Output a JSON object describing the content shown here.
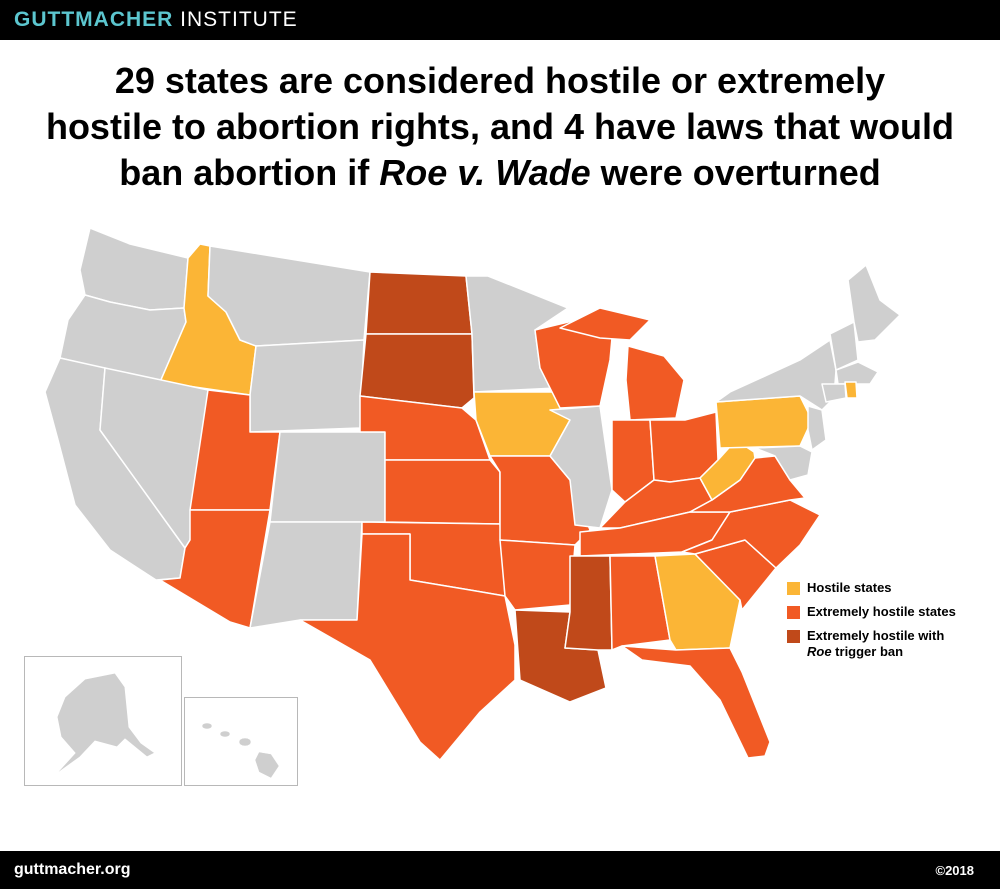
{
  "brand": {
    "part1": "GUTTMACHER",
    "part2": "INSTITUTE"
  },
  "headline": {
    "line1": "29 states are considered hostile or extremely",
    "line2": "hostile to abortion rights, and 4 have laws that would",
    "line3_prefix": "ban abortion if ",
    "line3_italic": "Roe v. Wade",
    "line3_suffix": " were overturned"
  },
  "colors": {
    "neutral": "#cfcfcf",
    "hostile": "#fbb536",
    "extreme": "#f15a24",
    "trigger": "#c0491a",
    "border": "#ffffff"
  },
  "legend": [
    {
      "key": "hostile",
      "label": "Hostile states"
    },
    {
      "key": "extreme",
      "label": "Extremely hostile states"
    },
    {
      "key": "trigger",
      "label": "Extremely hostile with",
      "italic": "Roe",
      "rest": " trigger ban"
    }
  ],
  "footer": {
    "url": "guttmacher.org",
    "copyright": "©2018"
  }
}
